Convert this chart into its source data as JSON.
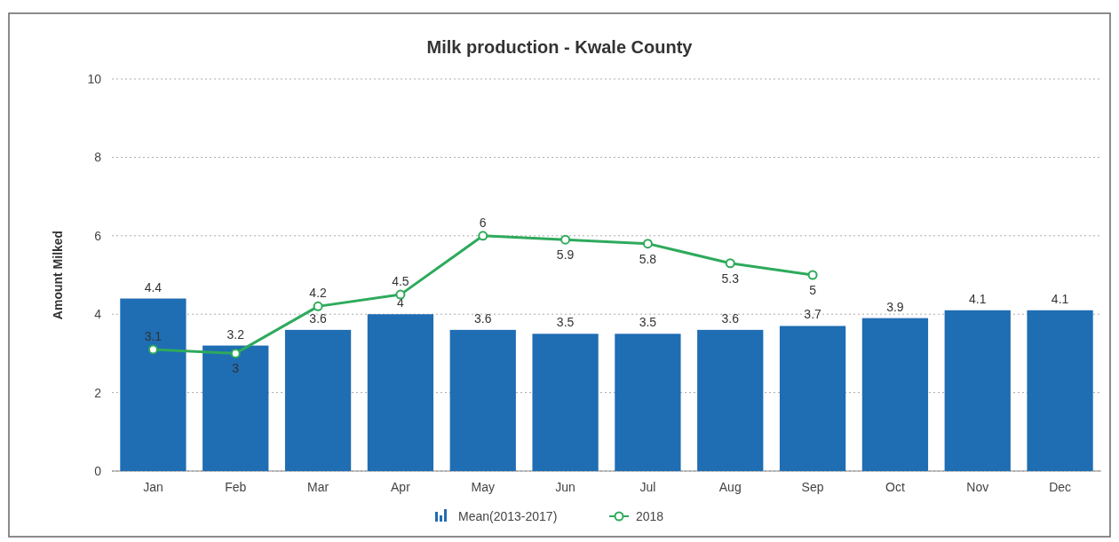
{
  "chart_data": {
    "type": "bar",
    "title": "Milk production - Kwale County",
    "ylabel": "Amount Milked",
    "categories": [
      "Jan",
      "Feb",
      "Mar",
      "Apr",
      "May",
      "Jun",
      "Jul",
      "Aug",
      "Sep",
      "Oct",
      "Nov",
      "Dec"
    ],
    "series": [
      {
        "name": "Mean(2013-2017)",
        "color": "#1f6db3",
        "values": [
          4.4,
          3.2,
          3.6,
          4,
          3.6,
          3.5,
          3.5,
          3.6,
          3.7,
          3.9,
          4.1,
          4.1
        ]
      },
      {
        "name": "2018",
        "type": "line",
        "color": "#2eaa5c",
        "values": [
          3.1,
          3,
          4.2,
          4.5,
          6,
          5.9,
          5.8,
          5.3,
          5,
          null,
          null,
          null
        ]
      }
    ],
    "ylim": [
      0,
      10
    ],
    "yticks": [
      0,
      2,
      4,
      6,
      8,
      10
    ],
    "grid": "y",
    "legend": "bottom",
    "data_labels": true,
    "marker": "circle"
  }
}
